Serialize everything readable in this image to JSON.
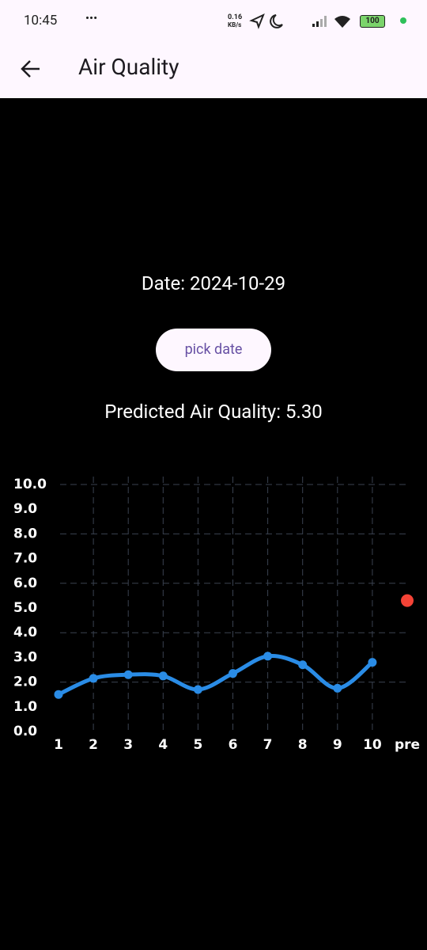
{
  "status_bar": {
    "time": "10:45",
    "speed": "0.16",
    "speed_unit": "KB/s",
    "battery": "100"
  },
  "app_bar": {
    "title": "Air Quality"
  },
  "date_text": "Date: 2024-10-29",
  "button": "pick date",
  "prediction_text": "Predicted Air Quality: 5.30",
  "chart_data": {
    "type": "line",
    "categories": [
      "1",
      "2",
      "3",
      "4",
      "5",
      "6",
      "7",
      "8",
      "9",
      "10",
      "pre"
    ],
    "series": [
      {
        "color": "#2a8ce6",
        "values": [
          1.5,
          2.15,
          2.3,
          2.25,
          1.7,
          2.35,
          3.05,
          2.7,
          1.75,
          2.8,
          null
        ]
      },
      {
        "color": "#f44336",
        "values": [
          null,
          null,
          null,
          null,
          null,
          null,
          null,
          null,
          null,
          null,
          5.3
        ]
      }
    ],
    "ylim": [
      0,
      10
    ],
    "yticks": [
      {
        "value": 0,
        "label": "0.0"
      },
      {
        "value": 1,
        "label": "1.0"
      },
      {
        "value": 2,
        "label": "2.0"
      },
      {
        "value": 3,
        "label": "3.0"
      },
      {
        "value": 4,
        "label": "4.0"
      },
      {
        "value": 5,
        "label": "5.0"
      },
      {
        "value": 6,
        "label": "6.0"
      },
      {
        "value": 7,
        "label": "7.0"
      },
      {
        "value": 8,
        "label": "8.0"
      },
      {
        "value": 9,
        "label": "9.0"
      },
      {
        "value": 10,
        "label": "10.0"
      }
    ],
    "grid": true
  }
}
